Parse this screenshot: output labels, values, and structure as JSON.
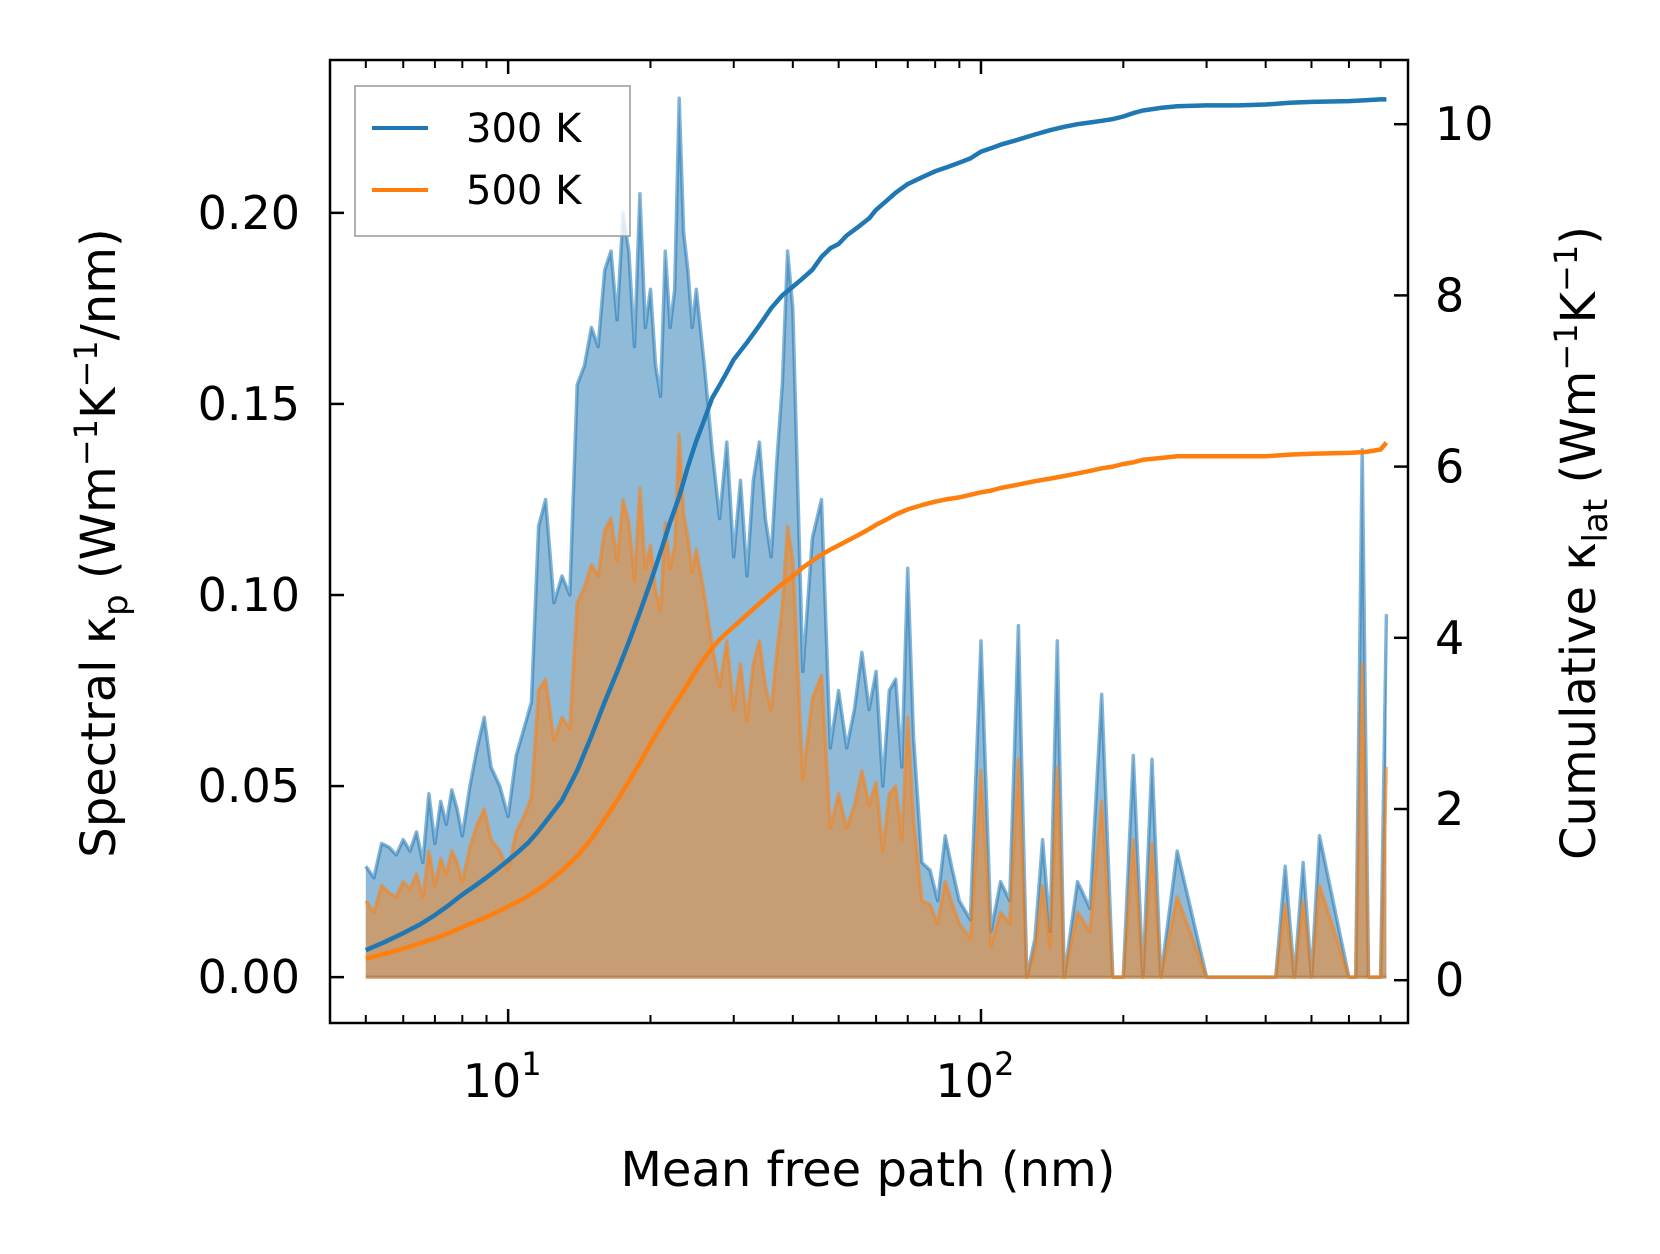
{
  "chart_data": {
    "type": "line",
    "xscale": "log",
    "xlabel": "Mean free path (nm)",
    "xlim": [
      4.2,
      800
    ],
    "x_tick_labels": [
      {
        "value": 10,
        "base": "10",
        "exp": "1"
      },
      {
        "value": 100,
        "base": "10",
        "exp": "2"
      }
    ],
    "left_axis": {
      "label_main": "Spectral κ",
      "label_sub": "p",
      "label_unit_pre": " (Wm",
      "label_sup1": "−1",
      "label_mid": "K",
      "label_sup2": "−1",
      "label_unit_post": "/nm)",
      "ylim": [
        -0.012,
        0.24
      ],
      "ticks": [
        0.0,
        0.05,
        0.1,
        0.15,
        0.2
      ],
      "tick_labels": [
        "0.00",
        "0.05",
        "0.10",
        "0.15",
        "0.20"
      ]
    },
    "right_axis": {
      "label_main": "Cumulative κ",
      "label_sub": "lat",
      "label_unit_pre": " (Wm",
      "label_sup1": "−1",
      "label_mid": "K",
      "label_sup2": "−1",
      "label_unit_post": ")",
      "ylim": [
        -0.5,
        10.75
      ],
      "ticks": [
        0,
        2,
        4,
        6,
        8,
        10
      ],
      "tick_labels": [
        "0",
        "2",
        "4",
        "6",
        "8",
        "10"
      ]
    },
    "legend": {
      "position": "top-left",
      "entries": [
        {
          "label": "300 K",
          "color": "#1f77b4"
        },
        {
          "label": "500 K",
          "color": "#ff7f0e"
        }
      ]
    },
    "spectral_series": [
      {
        "name": "300 K",
        "color": "#1f77b4",
        "x": [
          5.0,
          5.2,
          5.4,
          5.6,
          5.8,
          6.0,
          6.2,
          6.4,
          6.6,
          6.8,
          7.0,
          7.2,
          7.4,
          7.6,
          7.8,
          8.0,
          8.3,
          8.6,
          8.9,
          9.2,
          9.6,
          10.0,
          10.4,
          10.8,
          11.2,
          11.6,
          12.0,
          12.5,
          13.0,
          13.5,
          14.0,
          14.5,
          15.0,
          15.5,
          16.0,
          16.5,
          17.0,
          17.5,
          18.0,
          18.5,
          19.0,
          19.5,
          20.0,
          20.5,
          21.0,
          21.5,
          22.0,
          22.5,
          23.0,
          23.5,
          24.0,
          24.5,
          25.0,
          26.0,
          27.0,
          28.0,
          29.0,
          30.0,
          31.0,
          32.0,
          33.0,
          34.0,
          35.0,
          36.0,
          37.0,
          38.0,
          39.0,
          40.0,
          42.0,
          44.0,
          46.0,
          48.0,
          50.0,
          52.0,
          54.0,
          56.0,
          58.0,
          60.0,
          62.0,
          64.0,
          66.0,
          68.0,
          70.0,
          72.0,
          75.0,
          78.0,
          81.0,
          84.0,
          87.0,
          90.0,
          95.0,
          100.0,
          105.0,
          110.0,
          115.0,
          120.0,
          125.0,
          130.0,
          135.0,
          140.0,
          145.0,
          150.0,
          160.0,
          170.0,
          180.0,
          190.0,
          200.0,
          210.0,
          220.0,
          230.0,
          240.0,
          260.0,
          300.0,
          350.0,
          400.0,
          420.0,
          440.0,
          460.0,
          480.0,
          500.0,
          520.0,
          600.0,
          620.0,
          640.0,
          660.0,
          700.0,
          720.0
        ],
        "values": [
          0.029,
          0.026,
          0.035,
          0.034,
          0.032,
          0.036,
          0.033,
          0.038,
          0.03,
          0.048,
          0.035,
          0.046,
          0.04,
          0.049,
          0.044,
          0.037,
          0.05,
          0.06,
          0.068,
          0.055,
          0.05,
          0.042,
          0.058,
          0.065,
          0.072,
          0.118,
          0.125,
          0.098,
          0.105,
          0.1,
          0.155,
          0.16,
          0.17,
          0.165,
          0.185,
          0.19,
          0.172,
          0.2,
          0.19,
          0.165,
          0.205,
          0.17,
          0.18,
          0.16,
          0.152,
          0.19,
          0.17,
          0.18,
          0.23,
          0.195,
          0.185,
          0.17,
          0.18,
          0.16,
          0.138,
          0.12,
          0.14,
          0.11,
          0.13,
          0.105,
          0.13,
          0.14,
          0.12,
          0.11,
          0.135,
          0.155,
          0.19,
          0.175,
          0.08,
          0.115,
          0.125,
          0.06,
          0.075,
          0.06,
          0.07,
          0.085,
          0.07,
          0.08,
          0.05,
          0.075,
          0.078,
          0.055,
          0.107,
          0.063,
          0.03,
          0.028,
          0.02,
          0.037,
          0.028,
          0.02,
          0.015,
          0.088,
          0.012,
          0.025,
          0.02,
          0.092,
          0.0,
          0.01,
          0.036,
          0.012,
          0.088,
          0.0,
          0.025,
          0.018,
          0.074,
          0.0,
          0.0,
          0.058,
          0.0,
          0.057,
          0.0,
          0.033,
          0.0,
          0.0,
          0.0,
          0.0,
          0.029,
          0.0,
          0.03,
          0.0,
          0.037,
          0.0,
          0.0,
          0.138,
          0.0,
          0.0,
          0.095
        ]
      },
      {
        "name": "500 K",
        "color": "#ff7f0e",
        "x": [
          5.0,
          5.2,
          5.4,
          5.6,
          5.8,
          6.0,
          6.2,
          6.4,
          6.6,
          6.8,
          7.0,
          7.2,
          7.4,
          7.6,
          7.8,
          8.0,
          8.3,
          8.6,
          8.9,
          9.2,
          9.6,
          10.0,
          10.4,
          10.8,
          11.2,
          11.6,
          12.0,
          12.5,
          13.0,
          13.5,
          14.0,
          14.5,
          15.0,
          15.5,
          16.0,
          16.5,
          17.0,
          17.5,
          18.0,
          18.5,
          19.0,
          19.5,
          20.0,
          20.5,
          21.0,
          21.5,
          22.0,
          22.5,
          23.0,
          23.5,
          24.0,
          24.5,
          25.0,
          26.0,
          27.0,
          28.0,
          29.0,
          30.0,
          31.0,
          32.0,
          33.0,
          34.0,
          35.0,
          36.0,
          37.0,
          38.0,
          39.0,
          40.0,
          42.0,
          44.0,
          46.0,
          48.0,
          50.0,
          52.0,
          54.0,
          56.0,
          58.0,
          60.0,
          62.0,
          64.0,
          66.0,
          68.0,
          70.0,
          72.0,
          75.0,
          78.0,
          81.0,
          84.0,
          87.0,
          90.0,
          95.0,
          100.0,
          105.0,
          110.0,
          115.0,
          120.0,
          125.0,
          130.0,
          135.0,
          140.0,
          145.0,
          150.0,
          160.0,
          170.0,
          180.0,
          190.0,
          200.0,
          210.0,
          220.0,
          230.0,
          240.0,
          260.0,
          300.0,
          350.0,
          400.0,
          420.0,
          440.0,
          460.0,
          480.0,
          500.0,
          520.0,
          600.0,
          620.0,
          640.0,
          660.0,
          700.0,
          720.0
        ],
        "values": [
          0.02,
          0.017,
          0.024,
          0.022,
          0.021,
          0.025,
          0.023,
          0.027,
          0.021,
          0.033,
          0.024,
          0.031,
          0.027,
          0.033,
          0.03,
          0.025,
          0.034,
          0.04,
          0.044,
          0.036,
          0.033,
          0.028,
          0.038,
          0.042,
          0.047,
          0.075,
          0.078,
          0.062,
          0.068,
          0.065,
          0.098,
          0.102,
          0.108,
          0.105,
          0.117,
          0.12,
          0.109,
          0.125,
          0.119,
          0.104,
          0.128,
          0.107,
          0.113,
          0.101,
          0.096,
          0.119,
          0.107,
          0.113,
          0.142,
          0.121,
          0.115,
          0.106,
          0.112,
          0.1,
          0.087,
          0.076,
          0.088,
          0.07,
          0.082,
          0.067,
          0.082,
          0.088,
          0.076,
          0.07,
          0.085,
          0.097,
          0.118,
          0.109,
          0.052,
          0.073,
          0.079,
          0.039,
          0.048,
          0.039,
          0.045,
          0.054,
          0.045,
          0.051,
          0.033,
          0.048,
          0.05,
          0.036,
          0.068,
          0.041,
          0.02,
          0.019,
          0.014,
          0.025,
          0.019,
          0.014,
          0.01,
          0.054,
          0.008,
          0.017,
          0.014,
          0.057,
          0.0,
          0.007,
          0.024,
          0.008,
          0.055,
          0.0,
          0.017,
          0.012,
          0.046,
          0.0,
          0.0,
          0.036,
          0.0,
          0.035,
          0.0,
          0.021,
          0.0,
          0.0,
          0.0,
          0.0,
          0.019,
          0.0,
          0.02,
          0.0,
          0.024,
          0.0,
          0.0,
          0.082,
          0.0,
          0.0,
          0.055
        ]
      }
    ],
    "cumulative_series": [
      {
        "name": "300 K",
        "color": "#1f77b4",
        "x": [
          5.0,
          5.5,
          6.0,
          6.5,
          7.0,
          7.5,
          8.0,
          8.5,
          9.0,
          9.5,
          10.0,
          10.5,
          11.0,
          11.5,
          12.0,
          13.0,
          14.0,
          15.0,
          16.0,
          17.0,
          18.0,
          19.0,
          20.0,
          21.0,
          22.0,
          23.0,
          24.0,
          25.0,
          26.0,
          27.0,
          28.0,
          29.0,
          30.0,
          32.0,
          34.0,
          36.0,
          38.0,
          40.0,
          42.0,
          44.0,
          46.0,
          48.0,
          50.0,
          52.0,
          55.0,
          58.0,
          60.0,
          63.0,
          66.0,
          70.0,
          75.0,
          80.0,
          85.0,
          90.0,
          95.0,
          100.0,
          105.0,
          110.0,
          120.0,
          130.0,
          140.0,
          150.0,
          160.0,
          170.0,
          180.0,
          190.0,
          200.0,
          210.0,
          220.0,
          240.0,
          260.0,
          300.0,
          350.0,
          400.0,
          450.0,
          500.0,
          600.0,
          650.0,
          700.0,
          720.0
        ],
        "values": [
          0.35,
          0.45,
          0.55,
          0.65,
          0.76,
          0.88,
          1.0,
          1.1,
          1.2,
          1.3,
          1.4,
          1.5,
          1.6,
          1.72,
          1.85,
          2.1,
          2.45,
          2.85,
          3.25,
          3.6,
          3.95,
          4.3,
          4.65,
          5.0,
          5.35,
          5.65,
          6.0,
          6.3,
          6.55,
          6.8,
          6.95,
          7.1,
          7.25,
          7.45,
          7.65,
          7.85,
          8.0,
          8.1,
          8.2,
          8.3,
          8.45,
          8.55,
          8.6,
          8.7,
          8.8,
          8.9,
          9.0,
          9.1,
          9.2,
          9.3,
          9.38,
          9.45,
          9.5,
          9.55,
          9.6,
          9.68,
          9.72,
          9.76,
          9.82,
          9.88,
          9.93,
          9.97,
          10.0,
          10.02,
          10.04,
          10.06,
          10.09,
          10.13,
          10.16,
          10.19,
          10.21,
          10.22,
          10.22,
          10.23,
          10.25,
          10.26,
          10.27,
          10.28,
          10.29,
          10.29
        ]
      },
      {
        "name": "500 K",
        "color": "#ff7f0e",
        "x": [
          5.0,
          5.5,
          6.0,
          6.5,
          7.0,
          7.5,
          8.0,
          8.5,
          9.0,
          9.5,
          10.0,
          10.5,
          11.0,
          11.5,
          12.0,
          13.0,
          14.0,
          15.0,
          16.0,
          17.0,
          18.0,
          19.0,
          20.0,
          21.0,
          22.0,
          23.0,
          24.0,
          25.0,
          26.0,
          27.0,
          28.0,
          29.0,
          30.0,
          32.0,
          34.0,
          36.0,
          38.0,
          40.0,
          42.0,
          44.0,
          46.0,
          48.0,
          50.0,
          52.0,
          55.0,
          58.0,
          60.0,
          63.0,
          66.0,
          70.0,
          75.0,
          80.0,
          85.0,
          90.0,
          95.0,
          100.0,
          105.0,
          110.0,
          120.0,
          130.0,
          140.0,
          150.0,
          160.0,
          170.0,
          180.0,
          190.0,
          200.0,
          210.0,
          220.0,
          240.0,
          260.0,
          300.0,
          350.0,
          400.0,
          450.0,
          500.0,
          600.0,
          650.0,
          700.0,
          720.0
        ],
        "values": [
          0.25,
          0.31,
          0.37,
          0.43,
          0.49,
          0.55,
          0.62,
          0.68,
          0.74,
          0.8,
          0.86,
          0.92,
          0.98,
          1.05,
          1.12,
          1.28,
          1.45,
          1.65,
          1.88,
          2.1,
          2.32,
          2.54,
          2.76,
          2.96,
          3.14,
          3.3,
          3.46,
          3.62,
          3.76,
          3.88,
          3.98,
          4.06,
          4.13,
          4.27,
          4.4,
          4.52,
          4.63,
          4.72,
          4.82,
          4.9,
          4.97,
          5.03,
          5.08,
          5.13,
          5.2,
          5.27,
          5.32,
          5.38,
          5.44,
          5.5,
          5.55,
          5.59,
          5.62,
          5.64,
          5.67,
          5.7,
          5.72,
          5.75,
          5.79,
          5.83,
          5.86,
          5.89,
          5.92,
          5.95,
          5.98,
          6.0,
          6.03,
          6.05,
          6.08,
          6.1,
          6.12,
          6.12,
          6.12,
          6.12,
          6.14,
          6.15,
          6.16,
          6.17,
          6.2,
          6.28
        ]
      }
    ]
  }
}
